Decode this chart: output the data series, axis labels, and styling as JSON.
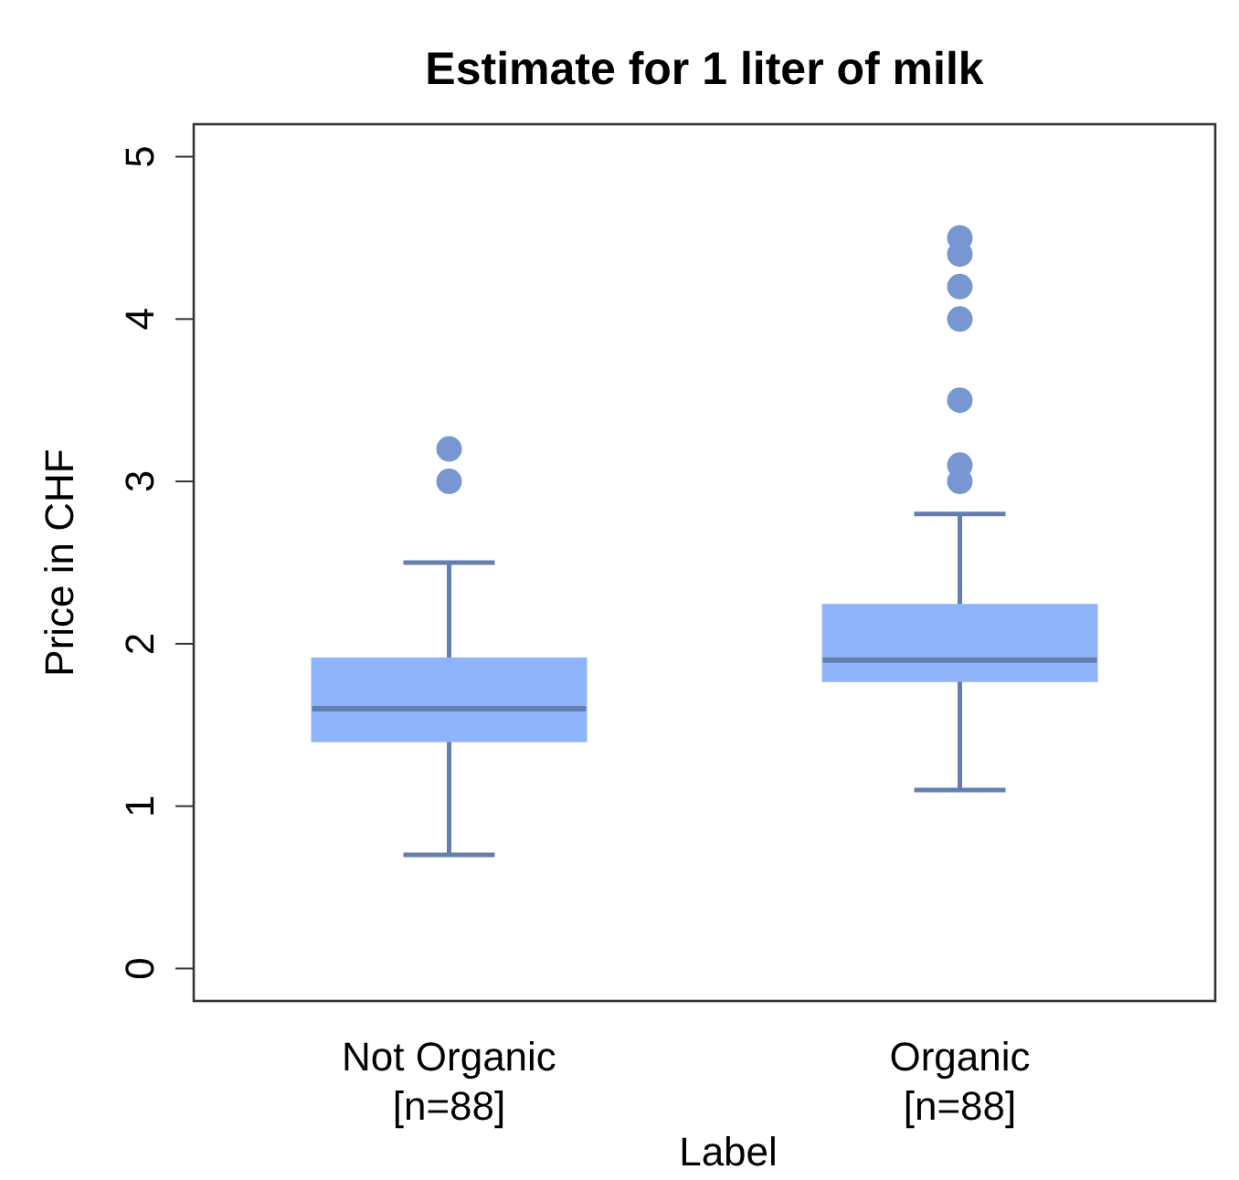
{
  "chart_data": {
    "type": "box",
    "title": "Estimate for 1 liter of milk",
    "xlabel": "Label",
    "ylabel": "Price in CHF",
    "categories": [
      "Not Organic\n[n=88]",
      "Organic\n[n=88]"
    ],
    "boxes": [
      {
        "low": 0.7,
        "q1": 1.4,
        "median": 1.6,
        "q3": 1.91,
        "high": 2.5,
        "outliers": [
          3.0,
          3.2
        ]
      },
      {
        "low": 1.1,
        "q1": 1.77,
        "median": 1.9,
        "q3": 2.24,
        "high": 2.8,
        "outliers": [
          3.0,
          3.1,
          3.5,
          4.0,
          4.2,
          4.4,
          4.5
        ]
      }
    ],
    "color": "#8fb4fb",
    "ylim": [
      -0.2,
      5.2
    ],
    "yticks": [
      0,
      1,
      2,
      3,
      4,
      5
    ],
    "grid": false
  }
}
